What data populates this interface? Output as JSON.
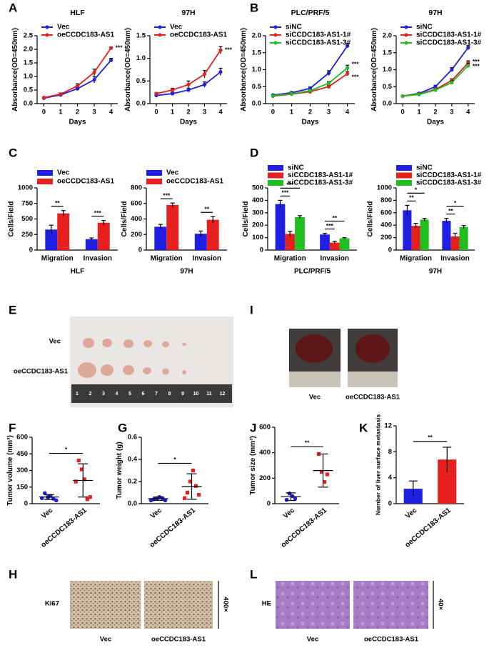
{
  "panels": [
    "A",
    "B",
    "C",
    "D",
    "E",
    "I",
    "F",
    "G",
    "J",
    "K",
    "H",
    "L"
  ],
  "chart_data": [
    {
      "type": "line",
      "title": "HLF",
      "xlabel": "Days",
      "ylabel": "Absorbance(OD=450nm)",
      "x": [
        0,
        1,
        2,
        3,
        4
      ],
      "xlim": [
        -0.4,
        4.4
      ],
      "xticks": [
        0,
        1,
        2,
        3,
        4
      ],
      "ylim": [
        0,
        2.5
      ],
      "yticks": [
        {
          "value": 0,
          "label": "0.0"
        },
        0.5,
        {
          "value": 1,
          "label": "1.0"
        },
        1.5,
        {
          "value": 2,
          "label": "2.0"
        },
        2.5
      ],
      "series": [
        {
          "name": "Vec",
          "color": "#1f1fe6",
          "values": [
            0.2,
            0.32,
            0.55,
            0.88,
            1.6
          ],
          "errors": [
            0.02,
            0.03,
            0.04,
            0.12,
            0.07
          ]
        },
        {
          "name": "oeCCDC183-AS1",
          "color": "#e61f1f",
          "values": [
            0.22,
            0.35,
            0.65,
            1.15,
            2.05
          ],
          "errors": [
            0.02,
            0.04,
            0.08,
            0.12,
            0.03
          ],
          "annotation": "***"
        }
      ]
    },
    {
      "type": "line",
      "title": "97H",
      "xlabel": "Days",
      "ylabel": "Absorbance(OD=450nm)",
      "x": [
        0,
        1,
        2,
        3,
        4
      ],
      "xlim": [
        -0.4,
        4.4
      ],
      "xticks": [
        0,
        1,
        2,
        3,
        4
      ],
      "ylim": [
        0,
        1.5
      ],
      "yticks": [
        {
          "value": 0,
          "label": "0.0"
        },
        0.5,
        {
          "value": 1,
          "label": "1.0"
        },
        1.5
      ],
      "series": [
        {
          "name": "Vec",
          "color": "#1f1fe6",
          "values": [
            0.18,
            0.22,
            0.3,
            0.42,
            0.7
          ],
          "errors": [
            0.02,
            0.03,
            0.04,
            0.06,
            0.08
          ]
        },
        {
          "name": "oeCCDC183-AS1",
          "color": "#e61f1f",
          "values": [
            0.22,
            0.3,
            0.42,
            0.65,
            1.18
          ],
          "errors": [
            0.02,
            0.04,
            0.08,
            0.08,
            0.08
          ],
          "annotation": "***"
        }
      ]
    },
    {
      "type": "line",
      "title": "PLC/PRF/5",
      "xlabel": "Days",
      "ylabel": "Absorbance(OD=450nm)",
      "x": [
        0,
        1,
        2,
        3,
        4
      ],
      "xlim": [
        -0.4,
        4.4
      ],
      "xticks": [
        0,
        1,
        2,
        3,
        4
      ],
      "ylim": [
        0,
        2
      ],
      "yticks": [
        {
          "value": 0,
          "label": "0.0"
        },
        0.5,
        {
          "value": 1,
          "label": "1.0"
        },
        1.5,
        {
          "value": 2,
          "label": "2.0"
        }
      ],
      "series": [
        {
          "name": "siNC",
          "color": "#1f1fe6",
          "values": [
            0.25,
            0.32,
            0.45,
            0.9,
            1.7
          ],
          "errors": [
            0.02,
            0.03,
            0.04,
            0.07,
            0.06
          ]
        },
        {
          "name": "siCCDC183-AS1-1#",
          "color": "#e61f1f",
          "values": [
            0.22,
            0.28,
            0.35,
            0.5,
            0.88
          ],
          "errors": [
            0.02,
            0.02,
            0.03,
            0.04,
            0.06
          ],
          "annotation": "***"
        },
        {
          "name": "siCCDC183-AS1-3#",
          "color": "#1fbf1f",
          "values": [
            0.23,
            0.29,
            0.38,
            0.6,
            1.05
          ],
          "errors": [
            0.02,
            0.02,
            0.03,
            0.05,
            0.08
          ],
          "annotation": "***"
        }
      ]
    },
    {
      "type": "line",
      "title": "97H",
      "xlabel": "Days",
      "ylabel": "Absorbance(OD=450nm)",
      "x": [
        0,
        1,
        2,
        3,
        4
      ],
      "xlim": [
        -0.4,
        4.4
      ],
      "xticks": [
        0,
        1,
        2,
        3,
        4
      ],
      "ylim": [
        0,
        2
      ],
      "yticks": [
        {
          "value": 0,
          "label": "0.0"
        },
        0.5,
        {
          "value": 1,
          "label": "1.0"
        },
        1.5,
        {
          "value": 2,
          "label": "2.0"
        }
      ],
      "series": [
        {
          "name": "siNC",
          "color": "#1f1fe6",
          "values": [
            0.22,
            0.3,
            0.5,
            1.0,
            1.65
          ],
          "errors": [
            0.02,
            0.02,
            0.04,
            0.06,
            0.06
          ]
        },
        {
          "name": "siCCDC183-AS1-1#",
          "color": "#e61f1f",
          "values": [
            0.22,
            0.28,
            0.42,
            0.68,
            1.2
          ],
          "errors": [
            0.02,
            0.02,
            0.03,
            0.05,
            0.06
          ],
          "annotation": "***"
        },
        {
          "name": "siCCDC183-AS1-3#",
          "color": "#1fbf1f",
          "values": [
            0.22,
            0.27,
            0.4,
            0.62,
            1.12
          ],
          "errors": [
            0.02,
            0.02,
            0.03,
            0.05,
            0.06
          ],
          "annotation": "***"
        }
      ]
    },
    {
      "type": "bar",
      "xlabel": "HLF",
      "ylabel": "Cells/Field",
      "categories": [
        "Migration",
        "Invasion"
      ],
      "ylim": [
        0,
        1000
      ],
      "yticks": [
        0,
        250,
        500,
        750,
        1000
      ],
      "series": [
        {
          "name": "Vec",
          "color": "#1f1fe6",
          "values": [
            330,
            175
          ],
          "errors": [
            70,
            20
          ]
        },
        {
          "name": "oeCCDC183-AS1",
          "color": "#e61f1f",
          "values": [
            590,
            440
          ],
          "errors": [
            45,
            35
          ]
        }
      ],
      "annotations": [
        "**",
        "***"
      ]
    },
    {
      "type": "bar",
      "xlabel": "97H",
      "ylabel": "Cells/Field",
      "categories": [
        "Migration",
        "Invasion"
      ],
      "ylim": [
        0,
        800
      ],
      "yticks": [
        0,
        200,
        400,
        600,
        800
      ],
      "series": [
        {
          "name": "Vec",
          "color": "#1f1fe6",
          "values": [
            300,
            210
          ],
          "errors": [
            30,
            35
          ]
        },
        {
          "name": "oeCCDC183-AS1",
          "color": "#e61f1f",
          "values": [
            580,
            390
          ],
          "errors": [
            25,
            40
          ]
        }
      ],
      "annotations": [
        "***",
        "**"
      ]
    },
    {
      "type": "bar",
      "xlabel": "PLC/PRF/5",
      "ylabel": "Cells/Field",
      "categories": [
        "Migration",
        "Invasion"
      ],
      "ylim": [
        0,
        500
      ],
      "yticks": [
        0,
        100,
        200,
        300,
        400,
        500
      ],
      "series": [
        {
          "name": "siNC",
          "color": "#1f1fe6",
          "values": [
            370,
            125
          ],
          "errors": [
            30,
            10
          ]
        },
        {
          "name": "siCCDC183-AS1-1#",
          "color": "#e61f1f",
          "values": [
            130,
            60
          ],
          "errors": [
            20,
            10
          ]
        },
        {
          "name": "siCCDC183-AS1-3#",
          "color": "#1fbf1f",
          "values": [
            265,
            95
          ],
          "errors": [
            12,
            5
          ]
        }
      ],
      "annotations": [
        [
          "***",
          "***"
        ],
        [
          "***",
          "**"
        ]
      ]
    },
    {
      "type": "bar",
      "xlabel": "97H",
      "ylabel": "Cells/Field",
      "categories": [
        "Migration",
        "Invasion"
      ],
      "ylim": [
        0,
        1000
      ],
      "yticks": [
        0,
        200,
        400,
        600,
        800,
        1000
      ],
      "series": [
        {
          "name": "siNC",
          "color": "#1f1fe6",
          "values": [
            640,
            470
          ],
          "errors": [
            80,
            40
          ]
        },
        {
          "name": "siCCDC183-AS1-1#",
          "color": "#e61f1f",
          "values": [
            390,
            220
          ],
          "errors": [
            40,
            50
          ]
        },
        {
          "name": "siCCDC183-AS1-3#",
          "color": "#1fbf1f",
          "values": [
            490,
            370
          ],
          "errors": [
            20,
            25
          ]
        }
      ],
      "annotations": [
        [
          "**",
          "*"
        ],
        [
          "**",
          "*"
        ]
      ]
    },
    {
      "type": "dot",
      "ylabel": "Tumor volume (mm³)",
      "categories": [
        "Vec",
        "oeCCDC183-AS1"
      ],
      "ylim": [
        0,
        600
      ],
      "yticks": [
        0,
        150,
        300,
        450,
        600
      ],
      "colors": [
        "#1f1fe6",
        "#e61f1f"
      ],
      "points": [
        [
          50,
          95,
          60,
          70,
          45,
          30
        ],
        [
          200,
          390,
          310,
          220,
          40,
          60
        ]
      ],
      "means": [
        60,
        210
      ],
      "errors": [
        22,
        150
      ],
      "annotation": "*"
    },
    {
      "type": "dot",
      "ylabel": "Tumor weight (g)",
      "categories": [
        "Vec",
        "oeCCDC183-AS1"
      ],
      "ylim": [
        0,
        0.6
      ],
      "yticks": [
        {
          "value": 0,
          "label": "0.0"
        },
        0.2,
        0.4,
        0.6
      ],
      "colors": [
        "#1f1fe6",
        "#e61f1f"
      ],
      "points": [
        [
          0.03,
          0.04,
          0.05,
          0.06,
          0.05,
          0.03
        ],
        [
          0.05,
          0.1,
          0.2,
          0.3,
          0.16,
          0.08
        ]
      ],
      "means": [
        0.045,
        0.155
      ],
      "errors": [
        0.015,
        0.115
      ],
      "annotation": "*"
    },
    {
      "type": "dot",
      "ylabel": "Tumor size (mm³)",
      "categories": [
        "Vec",
        "oeCCDC183-AS1"
      ],
      "ylim": [
        0,
        600
      ],
      "yticks": [
        0,
        200,
        400,
        600
      ],
      "colors": [
        "#1f1fe6",
        "#e61f1f"
      ],
      "points": [
        [
          30,
          80,
          60,
          40
        ],
        [
          390,
          250,
          170,
          230
        ]
      ],
      "means": [
        55,
        260
      ],
      "errors": [
        30,
        130
      ],
      "annotation": "**"
    },
    {
      "type": "bar",
      "ylabel": "Number of liver surface metastasis",
      "categories": [
        "Vec",
        "oeCCDC183-AS1"
      ],
      "ylim": [
        0,
        12
      ],
      "yticks": [
        0,
        4,
        8,
        12
      ],
      "colors": [
        "#1f1fe6",
        "#e61f1f"
      ],
      "values": [
        2.3,
        6.8
      ],
      "errors": [
        1.2,
        1.9
      ],
      "annotation": "**"
    }
  ],
  "photos": {
    "E": {
      "rows": [
        "Vec",
        "oeCCDC183-AS1"
      ],
      "ruler": [
        "1",
        "2",
        "3",
        "4",
        "5",
        "6",
        "7",
        "8",
        "9",
        "10",
        "11",
        "12"
      ]
    },
    "I": {
      "labels": [
        "Vec",
        "oeCCDC183-AS1"
      ]
    },
    "H": {
      "stain": "Ki67",
      "magnification": "400×",
      "labels": [
        "Vec",
        "oeCCDC183-AS1"
      ]
    },
    "L": {
      "stain": "HE",
      "magnification": "40×",
      "labels": [
        "Vec",
        "oeCCDC183-AS1"
      ]
    }
  }
}
